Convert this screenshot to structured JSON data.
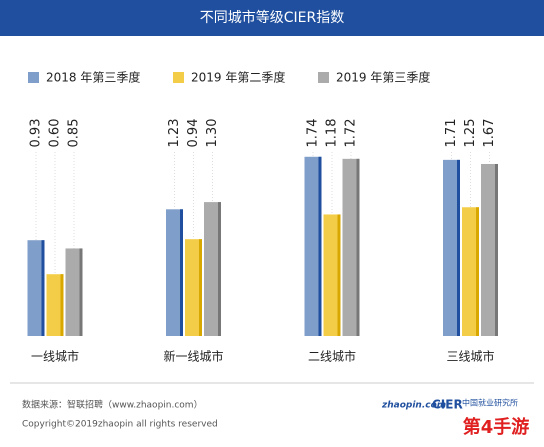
{
  "chart_data": {
    "type": "bar",
    "title": "不同城市等级CIER指数",
    "categories": [
      "一线城市",
      "新一线城市",
      "二线城市",
      "三线城市"
    ],
    "series": [
      {
        "name": "2018 年第三季度",
        "color": "#7f9ec9",
        "values": [
          0.93,
          1.23,
          1.74,
          1.71
        ],
        "value_labels": [
          "0.93",
          "1.23",
          "1.74",
          "1.71"
        ]
      },
      {
        "name": "2019 年第二季度",
        "color": "#f4cd48",
        "values": [
          0.6,
          0.94,
          1.18,
          1.25
        ],
        "value_labels": [
          "0.60",
          "0.94",
          "1.18",
          "1.25"
        ]
      },
      {
        "name": "2019 年第三季度",
        "color": "#ababab",
        "values": [
          0.85,
          1.3,
          1.72,
          1.67
        ],
        "value_labels": [
          "0.85",
          "1.30",
          "1.72",
          "1.67"
        ]
      }
    ]
  },
  "footer": {
    "source": "数据来源：智联招聘（www.zhaopin.com）",
    "copyright": "Copyright©2019zhaopin all rights reserved",
    "logo1": "zhaopin.com",
    "logo2": "CIER",
    "logo2_sub": "中国就业研究所",
    "watermark": "第4手游"
  }
}
